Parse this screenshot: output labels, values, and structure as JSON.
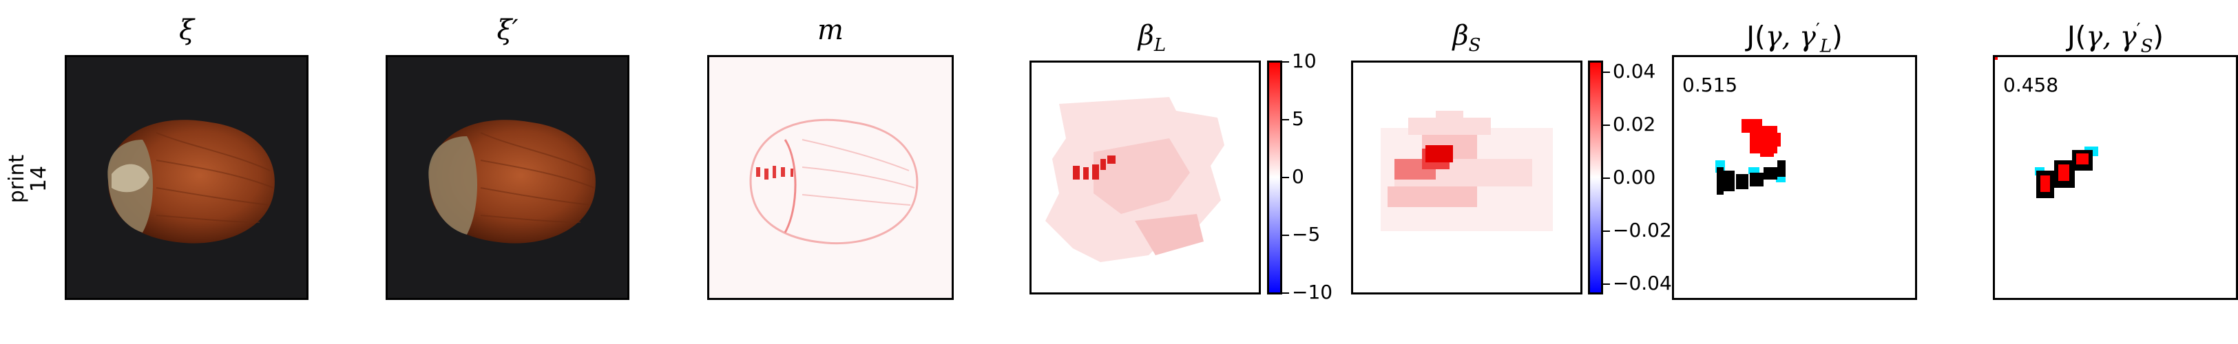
{
  "row_label": {
    "line1": "print",
    "line2": "14"
  },
  "panels": [
    {
      "id": "xi",
      "title": "ξ"
    },
    {
      "id": "xi_prime",
      "title": "ξ′"
    },
    {
      "id": "m",
      "title": "m"
    },
    {
      "id": "beta_L",
      "title_main": "β",
      "title_sub": "L",
      "colorbar": {
        "ticks": [
          "10",
          "5",
          "0",
          "−5",
          "−10"
        ],
        "top_color": "#ff0000",
        "mid_color": "#ffffff",
        "bottom_color": "#0000ff"
      }
    },
    {
      "id": "beta_S",
      "title_main": "β",
      "title_sub": "S",
      "colorbar": {
        "ticks": [
          "0.04",
          "0.02",
          "0.00",
          "−0.02",
          "−0.04"
        ],
        "top_color": "#ff0000",
        "mid_color": "#ffffff",
        "bottom_color": "#0000ff"
      }
    },
    {
      "id": "J_L",
      "title_prefix": "J(",
      "title_gamma": "γ, γ",
      "title_sup": "′",
      "title_sub": "L",
      "title_suffix": ")",
      "score": "0.515"
    },
    {
      "id": "J_S",
      "title_prefix": "J(",
      "title_gamma": "γ, γ",
      "title_sup": "′",
      "title_sub": "S",
      "title_suffix": ")",
      "score": "0.458"
    }
  ],
  "colors": {
    "hazelnut": "#8a3a18",
    "hazelnut_light": "#b5592c",
    "background_dark": "#1a1a1c",
    "red": "#ff0000",
    "cyan": "#00e5ff",
    "black": "#000000"
  }
}
